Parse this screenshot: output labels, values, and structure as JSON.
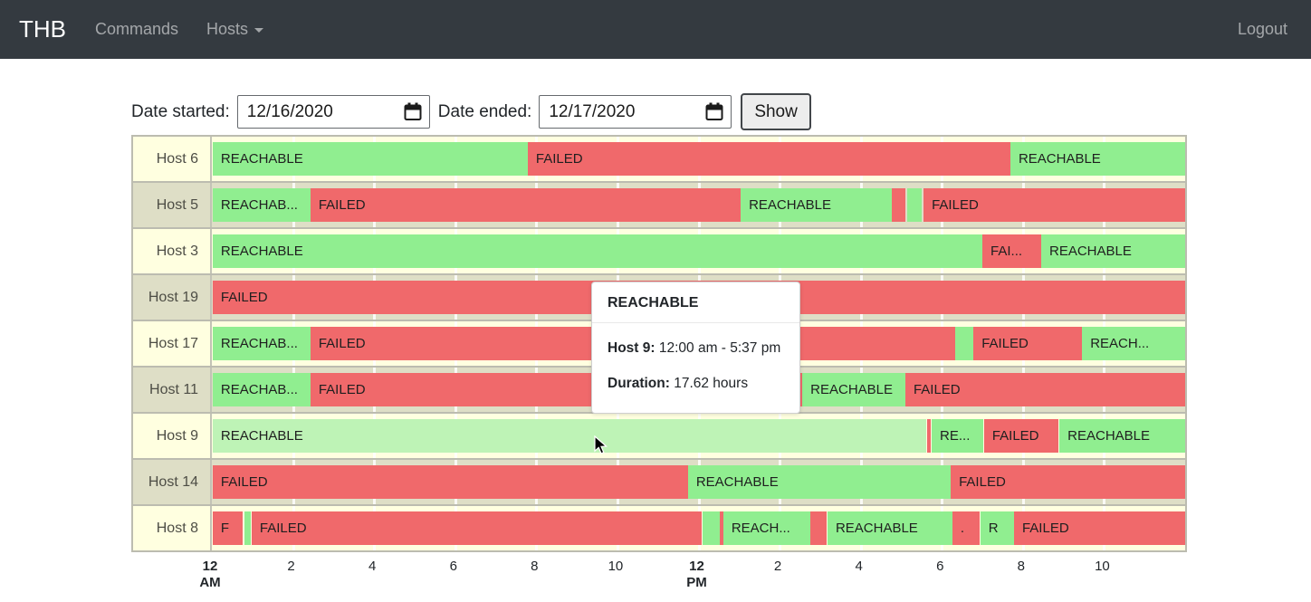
{
  "navbar": {
    "brand": "THB",
    "items": [
      {
        "label": "Commands",
        "has_dropdown": false
      },
      {
        "label": "Hosts",
        "has_dropdown": true
      }
    ],
    "logout_label": "Logout"
  },
  "controls": {
    "date_started_label": "Date started:",
    "date_started_value": "12/16/2020",
    "date_ended_label": "Date ended:",
    "date_ended_value": "12/17/2020",
    "show_label": "Show"
  },
  "tooltip": {
    "title": "REACHABLE",
    "host_label": "Host 9:",
    "time_range": " 12:00 am - 5:37 pm",
    "duration_label": "Duration:",
    "duration_value": " 17.62 hours"
  },
  "colors": {
    "navbar_bg": "#343a40",
    "reachable_green": "#90ee90",
    "reachable_green_hover": "#bef3b6",
    "failed_red": "#f0696b",
    "row_bg_odd": "#ffffe0",
    "row_bg_even": "#dedec6"
  },
  "chart_data": {
    "type": "timeline",
    "x_unit": "hour of day (12/16/2020 12:00 am - 12/17/2020 12:00 am)",
    "xlim": [
      0,
      24
    ],
    "x_tick_interval_hours": 2,
    "x_ticks": [
      {
        "hour": 0,
        "line1": "12",
        "line2": "AM",
        "bold": true
      },
      {
        "hour": 2,
        "line1": "2"
      },
      {
        "hour": 4,
        "line1": "4"
      },
      {
        "hour": 6,
        "line1": "6"
      },
      {
        "hour": 8,
        "line1": "8"
      },
      {
        "hour": 10,
        "line1": "10"
      },
      {
        "hour": 12,
        "line1": "12",
        "line2": "PM",
        "bold": true
      },
      {
        "hour": 14,
        "line1": "2"
      },
      {
        "hour": 16,
        "line1": "4"
      },
      {
        "hour": 18,
        "line1": "6"
      },
      {
        "hour": 20,
        "line1": "8"
      },
      {
        "hour": 22,
        "line1": "10"
      }
    ],
    "legend": {
      "REACHABLE": "green",
      "FAILED": "red"
    },
    "hosts": [
      {
        "name": "Host 6",
        "segments": [
          {
            "status": "reachable",
            "label": "REACHABLE",
            "start": 0.02,
            "end": 7.79
          },
          {
            "status": "failed",
            "label": "FAILED",
            "start": 7.79,
            "end": 19.69
          },
          {
            "status": "reachable",
            "label": "REACHABLE",
            "start": 19.69,
            "end": 24
          }
        ]
      },
      {
        "name": "Host 5",
        "segments": [
          {
            "status": "reachable",
            "label": "REACHAB...",
            "start": 0.02,
            "end": 2.43
          },
          {
            "status": "failed",
            "label": "FAILED",
            "start": 2.43,
            "end": 13.04
          },
          {
            "status": "reachable",
            "label": "REACHABLE",
            "start": 13.04,
            "end": 16.77
          },
          {
            "status": "failed",
            "label": "",
            "start": 16.77,
            "end": 17.1
          },
          {
            "status": "reachable",
            "label": "",
            "start": 17.14,
            "end": 17.5
          },
          {
            "status": "failed",
            "label": "FAILED",
            "start": 17.55,
            "end": 24
          }
        ]
      },
      {
        "name": "Host 3",
        "segments": [
          {
            "status": "reachable",
            "label": "REACHABLE",
            "start": 0.02,
            "end": 19.0
          },
          {
            "status": "failed",
            "label": "FAI...",
            "start": 19.0,
            "end": 20.45
          },
          {
            "status": "reachable",
            "label": "REACHABLE",
            "start": 20.45,
            "end": 24
          }
        ]
      },
      {
        "name": "Host 19",
        "segments": [
          {
            "status": "failed",
            "label": "FAILED",
            "start": 0.02,
            "end": 24
          }
        ]
      },
      {
        "name": "Host 17",
        "segments": [
          {
            "status": "reachable",
            "label": "REACHAB...",
            "start": 0.02,
            "end": 2.43
          },
          {
            "status": "failed",
            "label": "FAILED",
            "start": 2.43,
            "end": 18.33
          },
          {
            "status": "reachable",
            "label": "",
            "start": 18.33,
            "end": 18.78
          },
          {
            "status": "failed",
            "label": "FAILED",
            "start": 18.78,
            "end": 21.46
          },
          {
            "status": "reachable",
            "label": "REACH...",
            "start": 21.46,
            "end": 24
          }
        ]
      },
      {
        "name": "Host 11",
        "segments": [
          {
            "status": "reachable",
            "label": "REACHAB...",
            "start": 0.02,
            "end": 2.43
          },
          {
            "status": "failed",
            "label": "FAILED",
            "start": 2.43,
            "end": 14.56
          },
          {
            "status": "reachable",
            "label": "REACHABLE",
            "start": 14.56,
            "end": 17.1
          },
          {
            "status": "failed",
            "label": "FAILED",
            "start": 17.1,
            "end": 24
          }
        ]
      },
      {
        "name": "Host 9",
        "segments": [
          {
            "status": "reachable",
            "label": "REACHABLE",
            "start": 0.02,
            "end": 17.62,
            "hovered": true
          },
          {
            "status": "failed",
            "label": "",
            "start": 17.64,
            "end": 17.72
          },
          {
            "status": "reachable",
            "label": "RE...",
            "start": 17.75,
            "end": 19.02
          },
          {
            "status": "failed",
            "label": "FAILED",
            "start": 19.04,
            "end": 20.88
          },
          {
            "status": "reachable",
            "label": "REACHABLE",
            "start": 20.9,
            "end": 24
          }
        ]
      },
      {
        "name": "Host 14",
        "segments": [
          {
            "status": "failed",
            "label": "FAILED",
            "start": 0.02,
            "end": 11.74
          },
          {
            "status": "reachable",
            "label": "REACHABLE",
            "start": 11.74,
            "end": 18.22
          },
          {
            "status": "failed",
            "label": "FAILED",
            "start": 18.22,
            "end": 24
          }
        ]
      },
      {
        "name": "Host 8",
        "segments": [
          {
            "status": "failed",
            "label": "F",
            "start": 0.02,
            "end": 0.76
          },
          {
            "status": "reachable",
            "label": "",
            "start": 0.8,
            "end": 0.96
          },
          {
            "status": "failed",
            "label": "FAILED",
            "start": 0.98,
            "end": 12.08
          },
          {
            "status": "reachable",
            "label": "",
            "start": 12.1,
            "end": 12.52
          },
          {
            "status": "failed",
            "label": "",
            "start": 12.52,
            "end": 12.61
          },
          {
            "status": "reachable",
            "label": "REACH...",
            "start": 12.61,
            "end": 14.76
          },
          {
            "status": "failed",
            "label": "",
            "start": 14.76,
            "end": 15.16
          },
          {
            "status": "reachable",
            "label": "REACHABLE",
            "start": 15.18,
            "end": 18.26
          },
          {
            "status": "failed",
            "label": ".",
            "start": 18.26,
            "end": 18.93
          },
          {
            "status": "reachable",
            "label": "R",
            "start": 18.95,
            "end": 19.78
          },
          {
            "status": "failed",
            "label": "FAILED",
            "start": 19.78,
            "end": 24
          }
        ]
      }
    ]
  }
}
